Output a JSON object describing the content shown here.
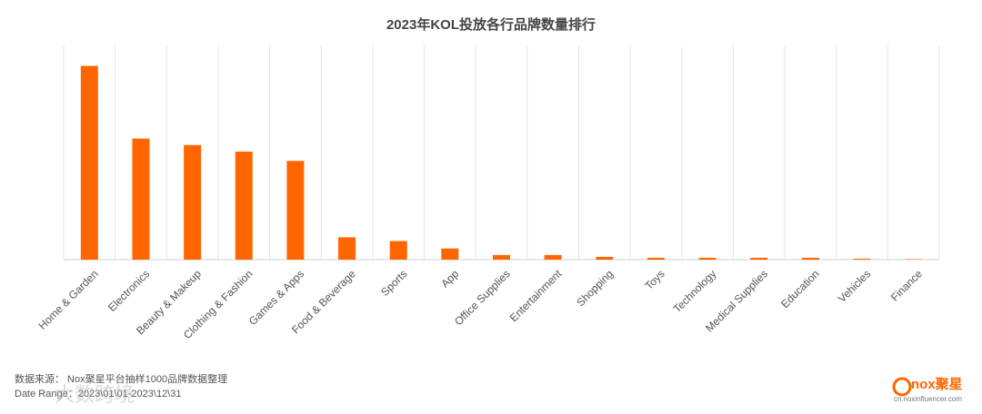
{
  "chart_data": {
    "type": "bar",
    "title": "2023年KOL投放各行品牌数量排行",
    "categories": [
      "Home & Garden",
      "Electronics",
      "Beauty & Makeup",
      "Clothing & Fashion",
      "Games & Apps",
      "Food & Beverage",
      "Sports",
      "App",
      "Office Supplies",
      "Entertainment",
      "Shopping",
      "Toys",
      "Technology",
      "Medical Supplies",
      "Education",
      "Vehicles",
      "Finance"
    ],
    "values": [
      208,
      130,
      123,
      116,
      106,
      24,
      20,
      12,
      5,
      5,
      3,
      2,
      2,
      2,
      2,
      1,
      0.5
    ],
    "color": "#ff6600",
    "ylim": [
      0,
      230
    ],
    "grid": true
  },
  "footer": {
    "source": "数据来源：  Nox聚星平台抽样1000品牌数据整理",
    "date_range": "Date Range：2023\\01\\01-2023\\12\\31",
    "watermark": "大数跨境",
    "logo": "nox聚星",
    "site": "cn.noxinfluencer.com"
  }
}
